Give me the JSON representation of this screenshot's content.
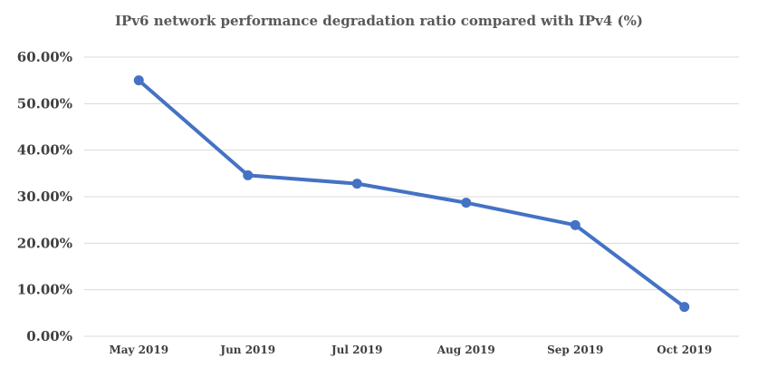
{
  "chart_data": {
    "type": "line",
    "title": "IPv6 network performance degradation ratio compared with IPv4 (%)",
    "categories": [
      "May 2019",
      "Jun 2019",
      "Jul 2019",
      "Aug 2019",
      "Sep 2019",
      "Oct 2019"
    ],
    "series": [
      {
        "values": [
          55.0,
          34.6,
          32.8,
          28.7,
          23.9,
          6.3
        ]
      }
    ],
    "ylim": [
      0,
      60
    ],
    "yticks": [
      0,
      10,
      20,
      30,
      40,
      50,
      60
    ],
    "ytick_labels": [
      "0.00%",
      "10.00%",
      "20.00%",
      "30.00%",
      "40.00%",
      "50.00%",
      "60.00%"
    ],
    "grid": true,
    "line_color": "#4472C4",
    "grid_color": "#d9d9d9"
  }
}
